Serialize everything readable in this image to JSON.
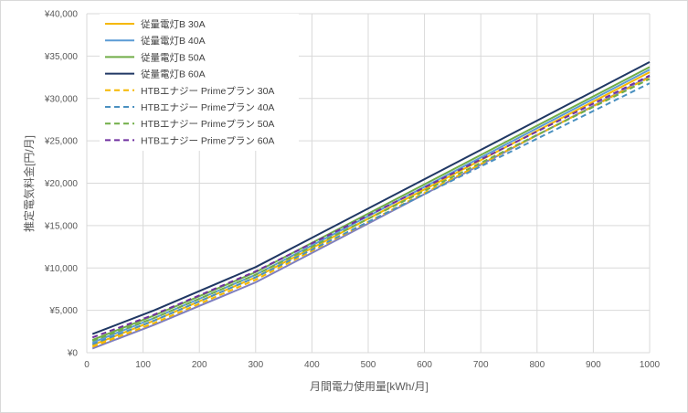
{
  "chart_data": {
    "type": "line",
    "title": "",
    "xlabel": "月間電力使用量[kWh/月]",
    "ylabel": "推定電気料金[円/月]",
    "xlim": [
      0,
      1000
    ],
    "ylim": [
      0,
      40000
    ],
    "x_ticks": [
      "0",
      "100",
      "200",
      "300",
      "400",
      "500",
      "600",
      "700",
      "800",
      "900",
      "1000"
    ],
    "y_ticks": [
      "¥0",
      "¥5,000",
      "¥10,000",
      "¥15,000",
      "¥20,000",
      "¥25,000",
      "¥30,000",
      "¥35,000",
      "¥40,000"
    ],
    "grid": true,
    "legend_position": "top-left",
    "x": [
      10,
      120,
      300,
      1000
    ],
    "series": [
      {
        "name": "従量電灯B 30A",
        "color": "#f5b800",
        "style": "solid",
        "values": [
          900,
          3800,
          8900,
          33100
        ]
      },
      {
        "name": "従量電灯B 40A",
        "color": "#5b9bd5",
        "style": "solid",
        "values": [
          1200,
          4100,
          9200,
          33400
        ]
      },
      {
        "name": "従量電灯B 50A",
        "color": "#70ad47",
        "style": "solid",
        "values": [
          1500,
          4400,
          9500,
          33700
        ]
      },
      {
        "name": "従量電灯B 60A",
        "color": "#203864",
        "style": "solid",
        "values": [
          2200,
          5000,
          10100,
          34300
        ]
      },
      {
        "name": "HTBエナジー Primeプラン 30A",
        "color": "#f5b800",
        "style": "dashed",
        "values": [
          700,
          3500,
          8600,
          32500
        ]
      },
      {
        "name": "HTBエナジー Primeプラン 40A",
        "color": "#4a90c0",
        "style": "dashed",
        "values": [
          1000,
          3800,
          8900,
          31800
        ]
      },
      {
        "name": "HTBエナジー Primeプラン 50A",
        "color": "#70ad47",
        "style": "dashed",
        "values": [
          1400,
          4100,
          9200,
          32300
        ]
      },
      {
        "name": "HTBエナジー Primeプラン 60A",
        "color": "#7030a0",
        "style": "dashed",
        "values": [
          1800,
          4500,
          9600,
          32700
        ]
      }
    ],
    "extra_solid_series": {
      "color": "#7f7fbf",
      "values": [
        500,
        3300,
        8300,
        32600
      ]
    }
  }
}
